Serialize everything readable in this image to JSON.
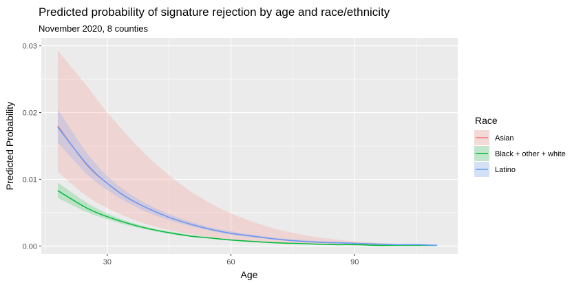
{
  "chart_data": {
    "type": "line",
    "title": "Predicted probability of signature rejection by age and race/ethnicity",
    "subtitle": "November 2020, 8 counties",
    "xlabel": "Age",
    "ylabel": "Predicted Probability",
    "xlim": [
      14,
      115
    ],
    "ylim": [
      -0.0012,
      0.0312
    ],
    "x_ticks": [
      30,
      60,
      90
    ],
    "x_tick_labels": [
      "30",
      "60",
      "90"
    ],
    "y_ticks": [
      0.0,
      0.01,
      0.02,
      0.03
    ],
    "y_tick_labels": [
      "0.00",
      "0.01",
      "0.02",
      "0.03"
    ],
    "grid": true,
    "legend": {
      "title": "Race",
      "position": "right"
    },
    "series": [
      {
        "name": "Asian",
        "color": "#F8766D",
        "fill": "#F8766D",
        "x": [
          18,
          25,
          30,
          35,
          40,
          45,
          50,
          55,
          60,
          65,
          70,
          75,
          80,
          85,
          90,
          95,
          100
        ],
        "y": [
          0.018,
          0.0122,
          0.0094,
          0.0072,
          0.0056,
          0.0043,
          0.0033,
          0.0025,
          0.0019,
          0.0015,
          0.0011,
          0.0008,
          0.0006,
          0.0005,
          0.0004,
          0.0003,
          0.0002
        ],
        "lower": [
          0.0111,
          0.0075,
          0.0057,
          0.0043,
          0.0032,
          0.0024,
          0.0018,
          0.0013,
          0.001,
          0.0007,
          0.0005,
          0.0004,
          0.0003,
          0.0002,
          0.0001,
          0.0001,
          0.0001
        ],
        "upper": [
          0.0293,
          0.024,
          0.02,
          0.0165,
          0.0133,
          0.0106,
          0.0083,
          0.0064,
          0.0049,
          0.0037,
          0.0027,
          0.002,
          0.0014,
          0.001,
          0.0007,
          0.0005,
          0.0003
        ]
      },
      {
        "name": "Black + other + white",
        "color": "#00BA38",
        "fill": "#00BA38",
        "x": [
          18,
          25,
          30,
          35,
          40,
          45,
          50,
          55,
          60,
          65,
          70,
          75,
          80,
          85,
          90,
          95,
          100,
          105,
          110
        ],
        "y": [
          0.0083,
          0.0057,
          0.0044,
          0.0034,
          0.0026,
          0.002,
          0.0015,
          0.0012,
          0.0009,
          0.0007,
          0.0005,
          0.0004,
          0.0003,
          0.0002,
          0.0002,
          0.0001,
          0.0001,
          0.0001,
          0.0001
        ],
        "lower": [
          0.0072,
          0.0051,
          0.004,
          0.0031,
          0.0024,
          0.0018,
          0.0014,
          0.0011,
          0.0008,
          0.0006,
          0.0005,
          0.0004,
          0.0003,
          0.0002,
          0.0001,
          0.0001,
          0.0001,
          0.0,
          0.0
        ],
        "upper": [
          0.0095,
          0.0065,
          0.0049,
          0.0037,
          0.0028,
          0.0022,
          0.0017,
          0.0013,
          0.001,
          0.0008,
          0.0006,
          0.0005,
          0.0004,
          0.0003,
          0.0002,
          0.0002,
          0.0001,
          0.0001,
          0.0001
        ]
      },
      {
        "name": "Latino",
        "color": "#619CFF",
        "fill": "#619CFF",
        "x": [
          18,
          25,
          30,
          35,
          40,
          45,
          50,
          55,
          60,
          65,
          70,
          75,
          80,
          85,
          90,
          95,
          100,
          105,
          110
        ],
        "y": [
          0.0178,
          0.0123,
          0.0094,
          0.0072,
          0.0056,
          0.0043,
          0.0033,
          0.0025,
          0.0019,
          0.0015,
          0.0011,
          0.0008,
          0.0006,
          0.0005,
          0.0004,
          0.0003,
          0.0002,
          0.0002,
          0.0001
        ],
        "lower": [
          0.0155,
          0.0108,
          0.0084,
          0.0065,
          0.005,
          0.0039,
          0.003,
          0.0023,
          0.0017,
          0.0013,
          0.001,
          0.0007,
          0.0005,
          0.0004,
          0.0003,
          0.0002,
          0.0002,
          0.0001,
          0.0001
        ],
        "upper": [
          0.0205,
          0.014,
          0.0105,
          0.008,
          0.0062,
          0.0048,
          0.0037,
          0.0028,
          0.0022,
          0.0017,
          0.0013,
          0.001,
          0.0008,
          0.0006,
          0.0005,
          0.0004,
          0.0003,
          0.0002,
          0.0002
        ]
      }
    ]
  }
}
